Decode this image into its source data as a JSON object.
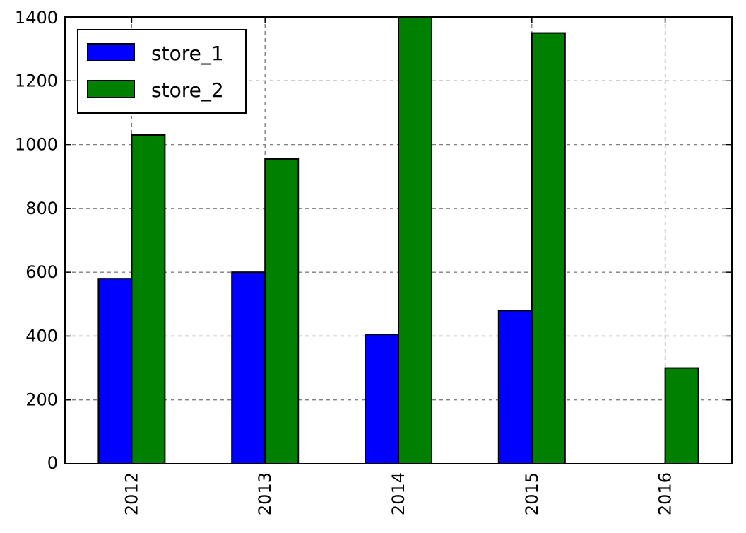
{
  "chart_data": {
    "type": "bar",
    "categories": [
      "2012",
      "2013",
      "2014",
      "2015",
      "2016"
    ],
    "series": [
      {
        "name": "store_1",
        "color": "#0000ff",
        "values": [
          580,
          600,
          405,
          480,
          null
        ]
      },
      {
        "name": "store_2",
        "color": "#008000",
        "values": [
          1030,
          955,
          1400,
          1350,
          300
        ]
      }
    ],
    "title": "",
    "xlabel": "",
    "ylabel": "",
    "ylim": [
      0,
      1400
    ],
    "yticks": [
      "0",
      "200",
      "400",
      "600",
      "800",
      "1000",
      "1200",
      "1400"
    ],
    "grid": true,
    "legend_position": "top-left",
    "x_tick_rotation": "vertical"
  }
}
